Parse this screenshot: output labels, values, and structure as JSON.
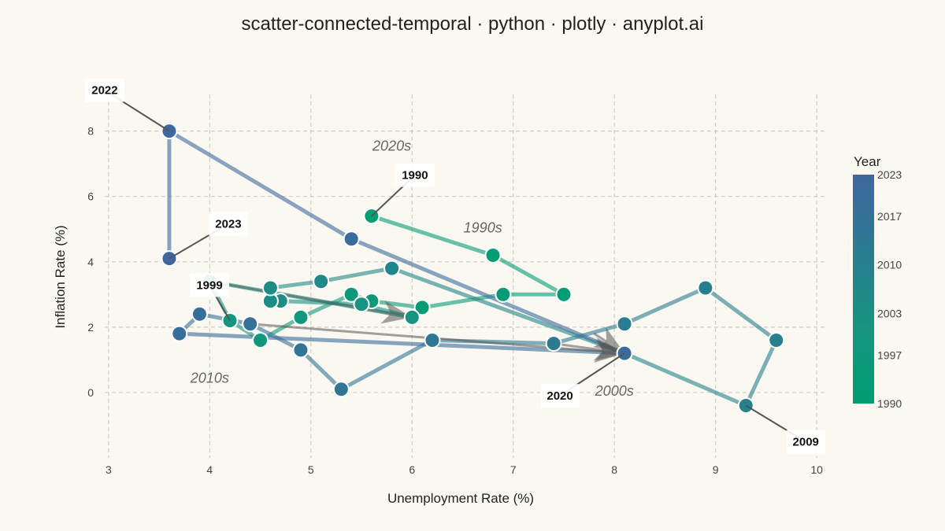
{
  "chart_data": {
    "type": "scatter",
    "title": "scatter-connected-temporal · python · plotly · anyplot.ai",
    "xlabel": "Unemployment Rate (%)",
    "ylabel": "Inflation Rate (%)",
    "xlim": [
      2.9,
      10.1
    ],
    "ylim": [
      -2.0,
      9.7
    ],
    "xticks": [
      3,
      4,
      5,
      6,
      7,
      8,
      9,
      10
    ],
    "yticks": [
      0,
      2,
      4,
      6,
      8
    ],
    "grid": true,
    "colorbar": {
      "title": "Year",
      "min": 1990,
      "max": 2023,
      "ticks": [
        1990,
        1997,
        2003,
        2010,
        2017,
        2023
      ]
    },
    "series": [
      {
        "points": [
          {
            "year": 1990,
            "x": 5.6,
            "y": 5.4
          },
          {
            "year": 1991,
            "x": 6.8,
            "y": 4.2
          },
          {
            "year": 1992,
            "x": 7.5,
            "y": 3.0
          },
          {
            "year": 1993,
            "x": 6.9,
            "y": 3.0
          },
          {
            "year": 1994,
            "x": 6.1,
            "y": 2.6
          },
          {
            "year": 1995,
            "x": 5.6,
            "y": 2.8
          },
          {
            "year": 1996,
            "x": 5.4,
            "y": 3.0
          },
          {
            "year": 1997,
            "x": 4.9,
            "y": 2.3
          },
          {
            "year": 1998,
            "x": 4.5,
            "y": 1.6
          },
          {
            "year": 1999,
            "x": 4.2,
            "y": 2.2
          },
          {
            "year": 2000,
            "x": 4.0,
            "y": 3.4
          },
          {
            "year": 2001,
            "x": 6.0,
            "y": 2.3
          },
          {
            "year": 2002,
            "x": 5.5,
            "y": 2.7
          },
          {
            "year": 2003,
            "x": 4.7,
            "y": 2.8
          },
          {
            "year": 2004,
            "x": 4.6,
            "y": 2.8
          },
          {
            "year": 2005,
            "x": 4.6,
            "y": 3.2
          },
          {
            "year": 2006,
            "x": 5.1,
            "y": 3.4
          },
          {
            "year": 2007,
            "x": 5.8,
            "y": 3.8
          },
          {
            "year": 2008,
            "x": 8.1,
            "y": 1.2
          },
          {
            "year": 2009,
            "x": 9.3,
            "y": -0.4
          },
          {
            "year": 2010,
            "x": 9.6,
            "y": 1.6
          },
          {
            "year": 2011,
            "x": 8.9,
            "y": 3.2
          },
          {
            "year": 2012,
            "x": 8.1,
            "y": 2.1
          },
          {
            "year": 2013,
            "x": 7.4,
            "y": 1.5
          },
          {
            "year": 2014,
            "x": 6.2,
            "y": 1.6
          },
          {
            "year": 2015,
            "x": 5.3,
            "y": 0.1
          },
          {
            "year": 2016,
            "x": 4.9,
            "y": 1.3
          },
          {
            "year": 2017,
            "x": 4.4,
            "y": 2.1
          },
          {
            "year": 2018,
            "x": 3.9,
            "y": 2.4
          },
          {
            "year": 2019,
            "x": 3.7,
            "y": 1.8
          },
          {
            "year": 2020,
            "x": 8.1,
            "y": 1.2
          },
          {
            "year": 2021,
            "x": 5.4,
            "y": 4.7
          },
          {
            "year": 2022,
            "x": 3.6,
            "y": 8.0
          },
          {
            "year": 2023,
            "x": 3.6,
            "y": 4.1
          }
        ]
      }
    ],
    "point_labels": [
      {
        "text": "1990",
        "year": 1990
      },
      {
        "text": "1999",
        "year": 1999
      },
      {
        "text": "2009",
        "year": 2009
      },
      {
        "text": "2020",
        "year": 2020
      },
      {
        "text": "2022",
        "year": 2022
      },
      {
        "text": "2023",
        "year": 2023
      }
    ],
    "decade_labels": [
      {
        "text": "1990s",
        "x": 6.7,
        "y": 4.9
      },
      {
        "text": "2000s",
        "x": 8.0,
        "y": -0.1
      },
      {
        "text": "2010s",
        "x": 4.0,
        "y": 0.3
      },
      {
        "text": "2020s",
        "x": 5.8,
        "y": 7.4
      }
    ],
    "direction_arrows": [
      {
        "from": [
          4.0,
          3.4
        ],
        "to": [
          6.0,
          2.3
        ]
      },
      {
        "from": [
          4.4,
          2.1
        ],
        "to": [
          8.1,
          1.2
        ]
      },
      {
        "from": [
          7.4,
          1.5
        ],
        "to": [
          8.1,
          1.2
        ]
      },
      {
        "from": [
          7.8,
          1.8
        ],
        "to": [
          8.1,
          1.2
        ]
      }
    ]
  }
}
